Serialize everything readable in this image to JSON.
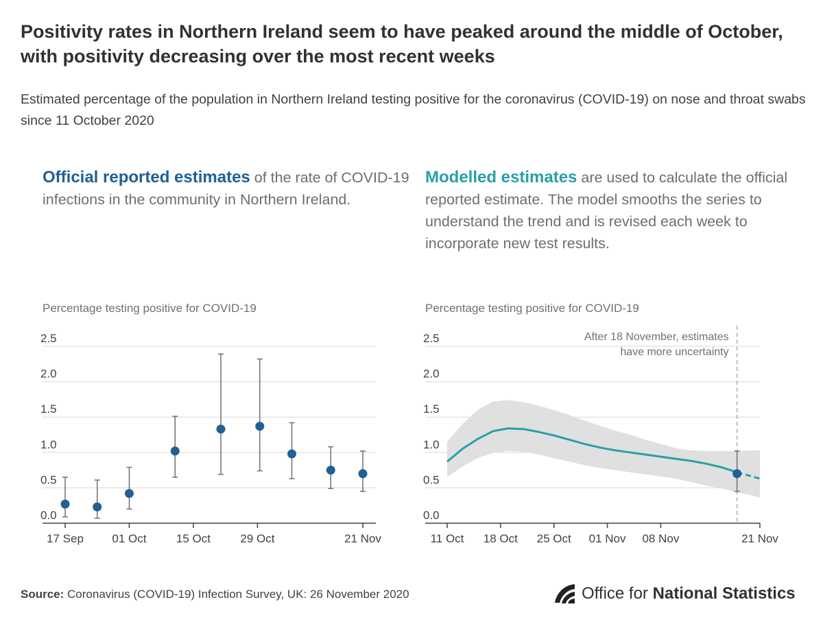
{
  "title": "Positivity rates in Northern Ireland seem to have peaked around the middle of October, with positivity decreasing over the most recent weeks",
  "subtitle": "Estimated percentage of the population in Northern Ireland testing positive for the coronavirus (COVID-19) on nose and throat swabs since 11 October 2020",
  "left_intro": {
    "highlight": "Official reported estimates",
    "rest": " of the rate of COVID-19 infections in the community in Northern Ireland."
  },
  "right_intro": {
    "highlight": "Modelled estimates",
    "rest": " are used to calculate the official reported estimate. The model smooths the series to understand the trend and is revised each week to incorporate new test results."
  },
  "source": {
    "label": "Source:",
    "text": " Coronavirus (COVID-19) Infection Survey, UK: 26 November 2020"
  },
  "logo": {
    "prefix": "Office for ",
    "bold": "National Statistics",
    "icon": "ons-logo-icon"
  },
  "colors": {
    "navy": "#206095",
    "teal": "#27a0a8",
    "band": "#e0e0e0",
    "axis": "#414042",
    "errorbar": "#707070"
  },
  "chart_data": [
    {
      "type": "scatter",
      "title": "Percentage testing positive for COVID-19",
      "x_ticks": [
        "17 Sep",
        "01 Oct",
        "15 Oct",
        "29 Oct",
        "21 Nov"
      ],
      "x_tick_days": [
        0,
        14,
        28,
        42,
        65
      ],
      "x_range_days": [
        0,
        65
      ],
      "y_ticks": [
        "0.0",
        "0.5",
        "1.0",
        "1.5",
        "2.0",
        "2.5"
      ],
      "ylim": [
        0,
        2.5
      ],
      "points": [
        {
          "day": 0,
          "value": 0.27,
          "lower": 0.09,
          "upper": 0.65
        },
        {
          "day": 7,
          "value": 0.23,
          "lower": 0.07,
          "upper": 0.61
        },
        {
          "day": 14,
          "value": 0.42,
          "lower": 0.2,
          "upper": 0.79
        },
        {
          "day": 24,
          "value": 1.02,
          "lower": 0.65,
          "upper": 1.51
        },
        {
          "day": 34,
          "value": 1.33,
          "lower": 0.69,
          "upper": 2.39
        },
        {
          "day": 42.5,
          "value": 1.37,
          "lower": 0.74,
          "upper": 2.32
        },
        {
          "day": 49.5,
          "value": 0.98,
          "lower": 0.63,
          "upper": 1.42
        },
        {
          "day": 58,
          "value": 0.75,
          "lower": 0.49,
          "upper": 1.08
        },
        {
          "day": 65,
          "value": 0.7,
          "lower": 0.45,
          "upper": 1.02
        }
      ]
    },
    {
      "type": "line",
      "title": "Percentage testing positive for COVID-19",
      "x_ticks": [
        "11 Oct",
        "18 Oct",
        "25 Oct",
        "01 Nov",
        "08 Nov",
        "21 Nov"
      ],
      "x_tick_days": [
        0,
        7,
        14,
        21,
        28,
        41
      ],
      "x_range_days": [
        0,
        41
      ],
      "y_ticks": [
        "0.0",
        "0.5",
        "1.0",
        "1.5",
        "2.0",
        "2.5"
      ],
      "ylim": [
        0,
        2.5
      ],
      "annotation": [
        "After 18 November, estimates",
        "have more uncertainty"
      ],
      "annotation_day": 38,
      "solid_until_day": 38,
      "series": {
        "days": [
          0,
          2,
          4,
          6,
          8,
          10,
          12,
          14,
          16,
          18,
          20,
          22,
          24,
          26,
          28,
          30,
          32,
          34,
          36,
          38,
          40,
          41
        ],
        "estimate": [
          0.87,
          1.05,
          1.19,
          1.3,
          1.34,
          1.33,
          1.29,
          1.24,
          1.18,
          1.12,
          1.07,
          1.03,
          1.0,
          0.97,
          0.94,
          0.91,
          0.88,
          0.84,
          0.79,
          0.72,
          0.66,
          0.63
        ],
        "lower": [
          0.65,
          0.8,
          0.92,
          0.99,
          1.02,
          1.01,
          0.97,
          0.92,
          0.87,
          0.82,
          0.78,
          0.75,
          0.72,
          0.69,
          0.66,
          0.63,
          0.58,
          0.53,
          0.49,
          0.44,
          0.39,
          0.36
        ],
        "upper": [
          1.15,
          1.4,
          1.6,
          1.72,
          1.74,
          1.71,
          1.66,
          1.6,
          1.53,
          1.45,
          1.38,
          1.31,
          1.25,
          1.18,
          1.12,
          1.06,
          1.03,
          1.02,
          1.02,
          1.02,
          1.03,
          1.03
        ]
      },
      "marker": {
        "day": 38,
        "value": 0.7,
        "lower": 0.45,
        "upper": 1.02
      }
    }
  ]
}
